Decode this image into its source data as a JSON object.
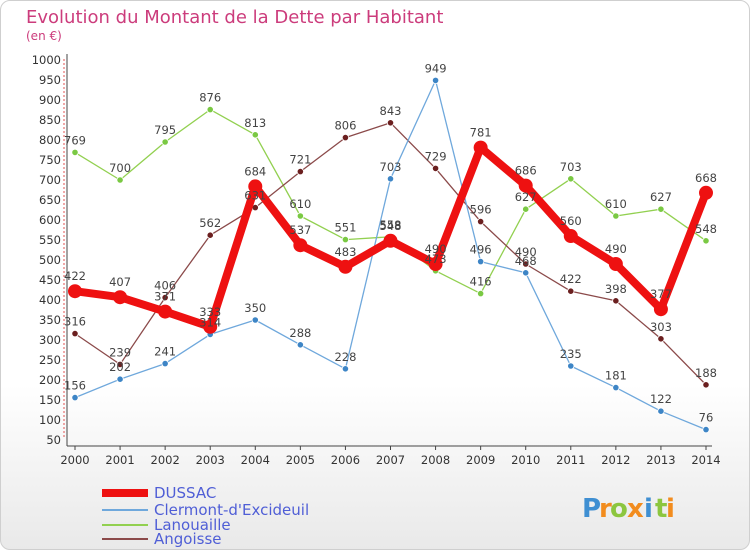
{
  "chart_data": {
    "type": "line",
    "title": "Evolution du Montant de la Dette par Habitant",
    "subtitle": "(en €)",
    "categories": [
      "2000",
      "2001",
      "2002",
      "2003",
      "2004",
      "2005",
      "2006",
      "2007",
      "2008",
      "2009",
      "2010",
      "2011",
      "2012",
      "2013",
      "2014"
    ],
    "ylim": [
      50,
      1000
    ],
    "yticks": [
      50,
      100,
      150,
      200,
      250,
      300,
      350,
      400,
      450,
      500,
      550,
      600,
      650,
      700,
      750,
      800,
      850,
      900,
      950,
      1000
    ],
    "grid": false,
    "legend_position": "bottom-left",
    "series": [
      {
        "name": "Lanouaille",
        "color": "#92d050",
        "marker": "#7ac943",
        "values": [
          769,
          700,
          795,
          876,
          813,
          610,
          551,
          558,
          473,
          416,
          627,
          703,
          610,
          627,
          548
        ]
      },
      {
        "name": "Angoisse",
        "color": "#8b4a4a",
        "marker": "#6b1f1f",
        "values": [
          316,
          239,
          406,
          562,
          631,
          721,
          806,
          843,
          729,
          596,
          490,
          422,
          398,
          303,
          188
        ]
      },
      {
        "name": "Clermont-d'Excideuil",
        "color": "#6fa8dc",
        "marker": "#3d85c6",
        "values": [
          156,
          202,
          241,
          314,
          350,
          288,
          228,
          703,
          949,
          496,
          468,
          235,
          181,
          122,
          76
        ]
      },
      {
        "name": "DUSSAC",
        "color": "#ee1111",
        "marker": "#ee1111",
        "thick": true,
        "values": [
          422,
          407,
          371,
          333,
          684,
          537,
          483,
          548,
          490,
          781,
          686,
          560,
          490,
          377,
          668
        ]
      }
    ]
  },
  "legend": {
    "items": [
      {
        "name": "DUSSAC",
        "color": "#ee1111"
      },
      {
        "name": "Clermont-d'Excideuil",
        "color": "#6fa8dc"
      },
      {
        "name": "Lanouaille",
        "color": "#92d050"
      },
      {
        "name": "Angoisse",
        "color": "#8b4a4a"
      }
    ]
  },
  "logo": {
    "text": "Proxiti",
    "letters": [
      {
        "ch": "P",
        "color": "#3f8fd2"
      },
      {
        "ch": "r",
        "color": "#f28c1e"
      },
      {
        "ch": "o",
        "color": "#8cc63f"
      },
      {
        "ch": "x",
        "color": "#f28c1e"
      },
      {
        "ch": "i",
        "color": "#3f8fd2"
      },
      {
        "ch": "t",
        "color": "#8cc63f"
      },
      {
        "ch": "i",
        "color": "#f28c1e"
      }
    ]
  }
}
